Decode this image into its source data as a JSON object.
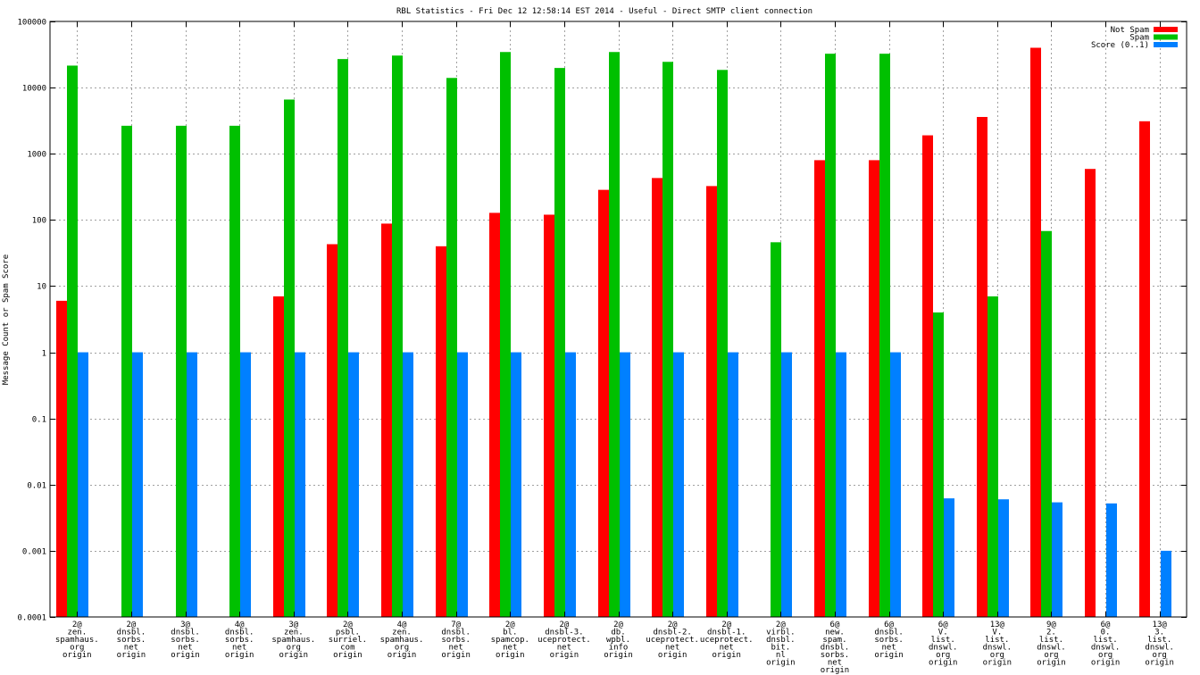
{
  "chart_data": {
    "type": "bar",
    "title": "RBL Statistics - Fri Dec 12 12:58:14 EST 2014 - Useful - Direct SMTP client connection",
    "ylabel": "Message Count or Spam Score",
    "xlabel": "",
    "yscale": "log",
    "ylim": [
      0.0001,
      100000
    ],
    "yticks": [
      "0.0001",
      "0.001",
      "0.01",
      "0.1",
      "1",
      "10",
      "100",
      "1000",
      "10000",
      "100000"
    ],
    "grid": true,
    "legend_position": "top-right",
    "categories": [
      [
        "2@",
        "zen.",
        "spamhaus.",
        "org",
        "origin"
      ],
      [
        "2@",
        "dnsbl.",
        "sorbs.",
        "net",
        "origin"
      ],
      [
        "3@",
        "dnsbl.",
        "sorbs.",
        "net",
        "origin"
      ],
      [
        "4@",
        "dnsbl.",
        "sorbs.",
        "net",
        "origin"
      ],
      [
        "3@",
        "zen.",
        "spamhaus.",
        "org",
        "origin"
      ],
      [
        "2@",
        "psbl.",
        "surriel.",
        "com",
        "origin"
      ],
      [
        "4@",
        "zen.",
        "spamhaus.",
        "org",
        "origin"
      ],
      [
        "7@",
        "dnsbl.",
        "sorbs.",
        "net",
        "origin"
      ],
      [
        "2@",
        "bl.",
        "spamcop.",
        "net",
        "origin"
      ],
      [
        "2@",
        "dnsbl-3.",
        "uceprotect.",
        "net",
        "origin"
      ],
      [
        "2@",
        "db.",
        "wpbl.",
        "info",
        "origin"
      ],
      [
        "2@",
        "dnsbl-2.",
        "uceprotect.",
        "net",
        "origin"
      ],
      [
        "2@",
        "dnsbl-1.",
        "uceprotect.",
        "net",
        "origin"
      ],
      [
        "2@",
        "virbl.",
        "dnsbl.",
        "bit.",
        "nl",
        "origin"
      ],
      [
        "6@",
        "new.",
        "spam.",
        "dnsbl.",
        "sorbs.",
        "net",
        "origin"
      ],
      [
        "6@",
        "dnsbl.",
        "sorbs.",
        "net",
        "origin"
      ],
      [
        "6@",
        "V.",
        "list.",
        "dnswl.",
        "org",
        "origin"
      ],
      [
        "13@",
        "V.",
        "list.",
        "dnswl.",
        "org",
        "origin"
      ],
      [
        "9@",
        "2.",
        "list.",
        "dnswl.",
        "org",
        "origin"
      ],
      [
        "6@",
        "0.",
        "list.",
        "dnswl.",
        "org",
        "origin"
      ],
      [
        "13@",
        "3.",
        "list.",
        "dnswl.",
        "org",
        "origin"
      ]
    ],
    "series": [
      {
        "name": "Not Spam",
        "color": "#ff0000",
        "values": [
          6,
          null,
          null,
          null,
          7,
          43,
          88,
          40,
          128,
          120,
          285,
          430,
          325,
          null,
          800,
          800,
          1900,
          3600,
          40000,
          590,
          3100
        ]
      },
      {
        "name": "Spam",
        "color": "#00c000",
        "values": [
          21500,
          2650,
          2650,
          2650,
          6600,
          27000,
          30500,
          14000,
          34500,
          19800,
          34500,
          24500,
          18500,
          46,
          32500,
          32500,
          4,
          7,
          68,
          null,
          null
        ]
      },
      {
        "name": "Score (0..1)",
        "color": "#0080ff",
        "values": [
          1,
          1,
          1,
          1,
          1,
          1,
          1,
          1,
          1,
          1,
          1,
          1,
          1,
          1,
          1,
          1,
          0.0062,
          0.006,
          0.0054,
          0.0052,
          0.001
        ]
      }
    ]
  }
}
